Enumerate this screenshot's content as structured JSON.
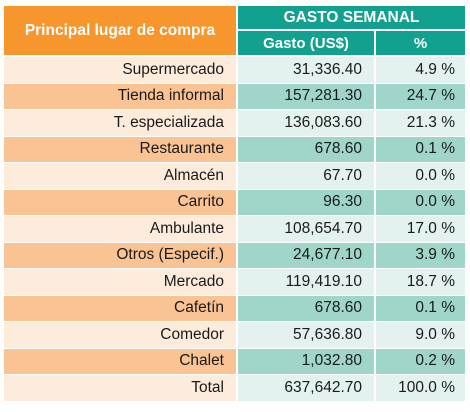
{
  "header": {
    "row_label": "Principal lugar de compra",
    "group_label": "GASTO SEMANAL",
    "amount_label": "Gasto (US$)",
    "pct_label": "%"
  },
  "rows": [
    {
      "place": "Supermercado",
      "amount": "31,336.40",
      "pct": "4.9 %"
    },
    {
      "place": "Tienda informal",
      "amount": "157,281.30",
      "pct": "24.7 %"
    },
    {
      "place": "T. especializada",
      "amount": "136,083.60",
      "pct": "21.3 %"
    },
    {
      "place": "Restaurante",
      "amount": "678.60",
      "pct": "0.1 %"
    },
    {
      "place": "Almacén",
      "amount": "67.70",
      "pct": "0.0 %"
    },
    {
      "place": "Carrito",
      "amount": "96.30",
      "pct": "0.0 %"
    },
    {
      "place": "Ambulante",
      "amount": "108,654.70",
      "pct": "17.0 %"
    },
    {
      "place": "Otros (Especif.)",
      "amount": "24,677.10",
      "pct": "3.9 %"
    },
    {
      "place": "Mercado",
      "amount": "119,419.10",
      "pct": "18.7 %"
    },
    {
      "place": "Cafetín",
      "amount": "678.60",
      "pct": "0.1 %"
    },
    {
      "place": "Comedor",
      "amount": "57,636.80",
      "pct": "9.0 %"
    },
    {
      "place": "Chalet",
      "amount": "1,032.80",
      "pct": "0.2 %"
    },
    {
      "place": "Total",
      "amount": "637,642.70",
      "pct": "100.0 %"
    }
  ]
}
